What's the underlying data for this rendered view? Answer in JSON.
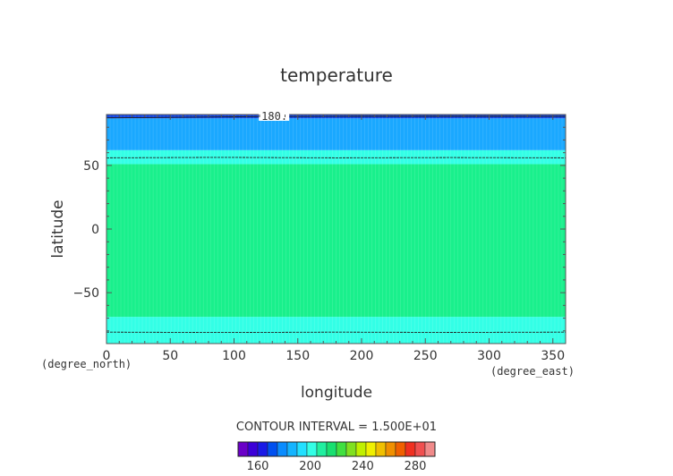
{
  "chart_data": {
    "type": "heatmap",
    "title": "temperature",
    "xlabel": "longitude",
    "ylabel": "latitude",
    "x_unit": "(degree_east)",
    "y_unit": "(degree_north)",
    "xlim": [
      0,
      360
    ],
    "ylim": [
      -90,
      90
    ],
    "x_ticks": [
      0,
      50,
      100,
      150,
      200,
      250,
      300,
      350
    ],
    "y_ticks": [
      -50,
      0,
      50
    ],
    "x_tick_labels": [
      "0",
      "50",
      "100",
      "150",
      "200",
      "250",
      "300",
      "350"
    ],
    "y_tick_labels": [
      "−50",
      "0",
      "50"
    ],
    "contour_interval_text": "CONTOUR INTERVAL = 1.500E+01",
    "contour_labels": [
      {
        "text": "180.",
        "lon": 118,
        "lat": 88.6
      }
    ],
    "latitude_bands": [
      {
        "lat_min": -90,
        "lat_max": -69,
        "color": "#33ffe6"
      },
      {
        "lat_min": -69,
        "lat_max": 51,
        "color": "#19f08c"
      },
      {
        "lat_min": 51,
        "lat_max": 62,
        "color": "#33ffe6"
      },
      {
        "lat_min": 62,
        "lat_max": 87,
        "color": "#1aa8ff"
      },
      {
        "lat_min": 87,
        "lat_max": 90,
        "color": "#1447e6"
      }
    ],
    "contour_lines": [
      {
        "value": 180,
        "points": [
          [
            0,
            87.4
          ],
          [
            60,
            87.8
          ],
          [
            118,
            88.4
          ],
          [
            200,
            88.6
          ],
          [
            300,
            88.6
          ],
          [
            360,
            88.5
          ]
        ]
      },
      {
        "value": 195,
        "points": [
          [
            0,
            56.0
          ],
          [
            90,
            56.3
          ],
          [
            180,
            56.0
          ],
          [
            270,
            56.2
          ],
          [
            360,
            56.0
          ]
        ]
      },
      {
        "value": 195,
        "points": [
          [
            0,
            -81.0
          ],
          [
            90,
            -81.3
          ],
          [
            180,
            -81.0
          ],
          [
            270,
            -81.2
          ],
          [
            360,
            -81.0
          ]
        ]
      }
    ],
    "colorbar": {
      "ticks": [
        160,
        200,
        240,
        280
      ],
      "min": 145,
      "max": 295,
      "bin_width": 7.5,
      "colors": [
        "#6a00c8",
        "#3c00d8",
        "#1a1ae6",
        "#0050f0",
        "#0a8cff",
        "#14b4ff",
        "#22e0ff",
        "#33ffe6",
        "#20f0a0",
        "#18e070",
        "#40e040",
        "#80e020",
        "#c0f000",
        "#f0f000",
        "#f0c000",
        "#f09000",
        "#f06000",
        "#f03020",
        "#f05050",
        "#f08a8a"
      ]
    }
  }
}
